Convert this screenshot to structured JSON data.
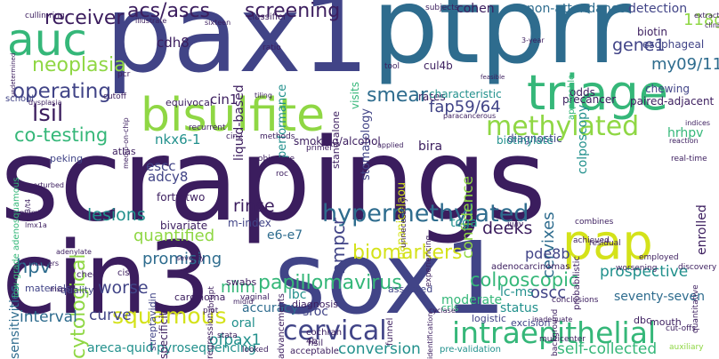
{
  "palette": {
    "dark": "#3b1d5e",
    "indigo": "#414487",
    "blue": "#2e6c8e",
    "teal": "#21908c",
    "green": "#35b779",
    "lime": "#8fd744",
    "yellow": "#d4e21a"
  },
  "words": {
    "scrapings": "scrapings",
    "pax1": "pax1",
    "ptprr": "ptprr",
    "cin3": "cin3",
    "sox1": "sox1",
    "bisulfite": "bisulfite",
    "triage": "triage",
    "auc": "auc",
    "pap": "pap",
    "hypermethylated": "hypermethylated",
    "intraepithelial": "intraepithelial",
    "cervical": "cervical",
    "methylated": "methylated",
    "squamous": "squamous",
    "lsil": "lsil",
    "operating": "operating",
    "receiver": "receiver",
    "acs_ascs": "acs/ascs",
    "screening": "screening",
    "neoplasia": "neoplasia",
    "co_testing": "co-testing",
    "smear": "smear",
    "biomarkers": "biomarkers",
    "papillomavirus": "papillomavirus",
    "cytological": "cytological",
    "hpv": "hpv",
    "colposcopic": "colposcopic",
    "colposcopy": "colposcopy",
    "fap59_64": "fap59/64",
    "gene1": "gene1",
    "my09_11": "my09/11",
    "n118g": "118g",
    "non_attendance": "non-attendance",
    "detection": "detection",
    "cohen": "cohen",
    "nmpcr": "nmpcr",
    "quantified": "quantified",
    "promising": "promising",
    "lesions": "lesions",
    "rinse": "rinse",
    "deeks": "deeks",
    "cervixes": "cervixes",
    "oscc": "oscc",
    "worse": "worse",
    "curve": "curve",
    "interval": "interval",
    "ofpax1": "ofpax1",
    "conversion": "conversion",
    "self_collected": "self-collected",
    "nilm": "nilm",
    "confidence": "confidence",
    "prospective": "prospective",
    "pde8b": "pde8b",
    "cdh8": "cdh8",
    "cin1": "cin1",
    "nkx6_1": "nkx6-1",
    "adcy8": "adcy8",
    "escc": "escc",
    "liquid_based": "liquid-based",
    "performance": "performance",
    "stomatology": "stomatology",
    "papanicolaou": "papanicolaou",
    "sensitivities": "sensitivities",
    "accuracy": "accuracy",
    "e6_e7": "e6-e7",
    "seventy_seven": "seventy-seven",
    "areca_quid": "areca-quid",
    "pyrosequencing": "pyrosequencing",
    "oral": "oral",
    "lbc": "lbc",
    "sroc": "sroc",
    "status": "status",
    "lc_ms": "lc-ms",
    "moderate": "moderate",
    "bira": "bira",
    "hrhpv": "hrhpv",
    "tcga": "tcga",
    "enrolled": "enrolled",
    "diagnostic": "diagnostic",
    "rates": "rates",
    "odds": "odds",
    "esophageal": "esophageal",
    "biotin": "biotin",
    "chewing": "chewing",
    "paired_adjacent": "paired-adjacent",
    "precancer": "precancer",
    "characteristic": "characteristic",
    "cul4b": "cul4b",
    "visits": "visits",
    "stand_alone": "stand-alone",
    "forty_two": "forty-two",
    "bivariate": "bivariate",
    "m_index": "m-index",
    "smoking_alcohol": "smoking/alcohol",
    "biotinylate": "biotinylate",
    "atlas": "atlas",
    "peking": "peking",
    "school": "school",
    "equivocal": "equivocal",
    "classifier": "classifier",
    "swabs": "swabs",
    "specificity": "specificity",
    "carcinoma": "carcinoma",
    "streptavidin": "streptavidin",
    "regression": "regression",
    "diagnosis": "diagnosis",
    "advancements": "advancements",
    "crls": "crls",
    "excision": "excision",
    "dbc": "dbc",
    "mouth": "mouth",
    "logistic": "logistic",
    "assessed": "assessed",
    "adenocarcinomas": "adenocarcinomas",
    "probabilistic": "probabilistic",
    "applicable": "applicable",
    "quality": "quality",
    "materials": "materials",
    "cis": "cis",
    "check": "check",
    "cochran": "cochran",
    "hsil": "hsil",
    "acceptable": "acceptable",
    "pre_validation": "pre-validation",
    "n4b": "4b",
    "funnel": "funnel",
    "cutoff": "cutoff",
    "pcr": "pcr",
    "tool": "tool",
    "ratio": "ratio",
    "subjects": "subjects",
    "cullin_ring": "cullin-ring",
    "sixteen": "sixteen",
    "unperturbed": "unperturbed",
    "undetermined": "undetermined",
    "low_grade_adenosquamous": "low-grade adenosquamous",
    "mgmt": "mgmt",
    "lmx1a": "lmx1a",
    "t3_t4": "t3/t4",
    "containers": "containers",
    "adenylate": "adenylate",
    "primer": "primer",
    "objective": "objective",
    "recurrent": "recurrent",
    "cin2": "cin2",
    "methods": "methods",
    "roc": "roc",
    "employed": "employed",
    "worsening": "worsening",
    "achieved": "achieved",
    "combines": "combines",
    "residual": "residual",
    "iii_iv": "iii/iv",
    "unnecessary": "unnecessary",
    "experiencing": "experiencing",
    "abrupt": "abrupt",
    "vaginal": "vaginal",
    "plot": "plot",
    "stata": "stata",
    "looked": "looked",
    "quantitative": "quantitative",
    "discovery": "discovery",
    "real_time": "real-time",
    "cut_offs": "cut-offs",
    "auxiliary": "auxiliary",
    "multicenter": "multicenter",
    "conclusions": "conclusions",
    "background": "background",
    "inadequate": "inadequate",
    "cyclase": "cyclase",
    "identification": "identification",
    "indices": "indices",
    "reaction": "reaction",
    "clinics": "clinics",
    "extracted": "extracted",
    "n3_year": "3-year",
    "feasible": "feasible",
    "dysplasia": "dysplasia",
    "msp": "msp",
    "severity": "severity",
    "tiling": "tiling",
    "applied": "applied",
    "paracancerous": "paracancerous",
    "midid": "midid",
    "medip_on_chip": "medip-on-chip",
    "illustrate": "illustrate"
  }
}
